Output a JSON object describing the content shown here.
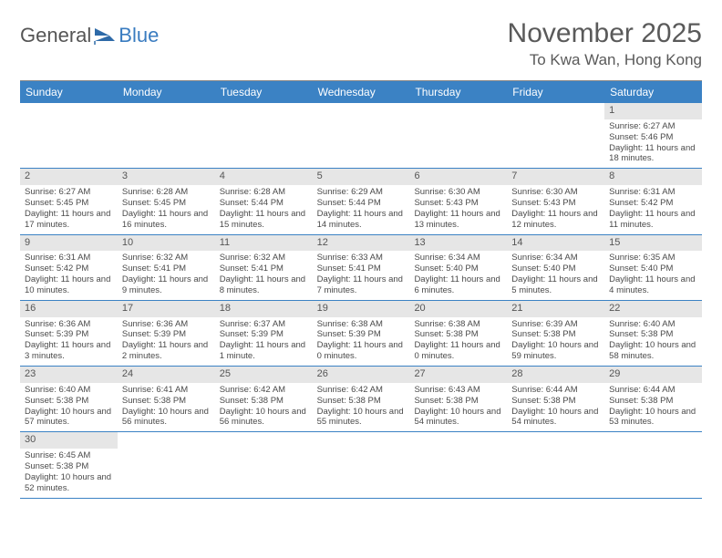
{
  "logo": {
    "textA": "General",
    "textB": "Blue"
  },
  "title": "November 2025",
  "location": "To Kwa Wan, Hong Kong",
  "colors": {
    "headerBar": "#3b82c4",
    "dayNumBg": "#e6e6e6",
    "weekDivider": "#3b82c4",
    "text": "#4a4a4a",
    "logoBlue": "#3a7cc0"
  },
  "weekdays": [
    "Sunday",
    "Monday",
    "Tuesday",
    "Wednesday",
    "Thursday",
    "Friday",
    "Saturday"
  ],
  "firstDayOffset": 6,
  "days": [
    {
      "n": 1,
      "sunrise": "6:27 AM",
      "sunset": "5:46 PM",
      "daylight": "11 hours and 18 minutes."
    },
    {
      "n": 2,
      "sunrise": "6:27 AM",
      "sunset": "5:45 PM",
      "daylight": "11 hours and 17 minutes."
    },
    {
      "n": 3,
      "sunrise": "6:28 AM",
      "sunset": "5:45 PM",
      "daylight": "11 hours and 16 minutes."
    },
    {
      "n": 4,
      "sunrise": "6:28 AM",
      "sunset": "5:44 PM",
      "daylight": "11 hours and 15 minutes."
    },
    {
      "n": 5,
      "sunrise": "6:29 AM",
      "sunset": "5:44 PM",
      "daylight": "11 hours and 14 minutes."
    },
    {
      "n": 6,
      "sunrise": "6:30 AM",
      "sunset": "5:43 PM",
      "daylight": "11 hours and 13 minutes."
    },
    {
      "n": 7,
      "sunrise": "6:30 AM",
      "sunset": "5:43 PM",
      "daylight": "11 hours and 12 minutes."
    },
    {
      "n": 8,
      "sunrise": "6:31 AM",
      "sunset": "5:42 PM",
      "daylight": "11 hours and 11 minutes."
    },
    {
      "n": 9,
      "sunrise": "6:31 AM",
      "sunset": "5:42 PM",
      "daylight": "11 hours and 10 minutes."
    },
    {
      "n": 10,
      "sunrise": "6:32 AM",
      "sunset": "5:41 PM",
      "daylight": "11 hours and 9 minutes."
    },
    {
      "n": 11,
      "sunrise": "6:32 AM",
      "sunset": "5:41 PM",
      "daylight": "11 hours and 8 minutes."
    },
    {
      "n": 12,
      "sunrise": "6:33 AM",
      "sunset": "5:41 PM",
      "daylight": "11 hours and 7 minutes."
    },
    {
      "n": 13,
      "sunrise": "6:34 AM",
      "sunset": "5:40 PM",
      "daylight": "11 hours and 6 minutes."
    },
    {
      "n": 14,
      "sunrise": "6:34 AM",
      "sunset": "5:40 PM",
      "daylight": "11 hours and 5 minutes."
    },
    {
      "n": 15,
      "sunrise": "6:35 AM",
      "sunset": "5:40 PM",
      "daylight": "11 hours and 4 minutes."
    },
    {
      "n": 16,
      "sunrise": "6:36 AM",
      "sunset": "5:39 PM",
      "daylight": "11 hours and 3 minutes."
    },
    {
      "n": 17,
      "sunrise": "6:36 AM",
      "sunset": "5:39 PM",
      "daylight": "11 hours and 2 minutes."
    },
    {
      "n": 18,
      "sunrise": "6:37 AM",
      "sunset": "5:39 PM",
      "daylight": "11 hours and 1 minute."
    },
    {
      "n": 19,
      "sunrise": "6:38 AM",
      "sunset": "5:39 PM",
      "daylight": "11 hours and 0 minutes."
    },
    {
      "n": 20,
      "sunrise": "6:38 AM",
      "sunset": "5:38 PM",
      "daylight": "11 hours and 0 minutes."
    },
    {
      "n": 21,
      "sunrise": "6:39 AM",
      "sunset": "5:38 PM",
      "daylight": "10 hours and 59 minutes."
    },
    {
      "n": 22,
      "sunrise": "6:40 AM",
      "sunset": "5:38 PM",
      "daylight": "10 hours and 58 minutes."
    },
    {
      "n": 23,
      "sunrise": "6:40 AM",
      "sunset": "5:38 PM",
      "daylight": "10 hours and 57 minutes."
    },
    {
      "n": 24,
      "sunrise": "6:41 AM",
      "sunset": "5:38 PM",
      "daylight": "10 hours and 56 minutes."
    },
    {
      "n": 25,
      "sunrise": "6:42 AM",
      "sunset": "5:38 PM",
      "daylight": "10 hours and 56 minutes."
    },
    {
      "n": 26,
      "sunrise": "6:42 AM",
      "sunset": "5:38 PM",
      "daylight": "10 hours and 55 minutes."
    },
    {
      "n": 27,
      "sunrise": "6:43 AM",
      "sunset": "5:38 PM",
      "daylight": "10 hours and 54 minutes."
    },
    {
      "n": 28,
      "sunrise": "6:44 AM",
      "sunset": "5:38 PM",
      "daylight": "10 hours and 54 minutes."
    },
    {
      "n": 29,
      "sunrise": "6:44 AM",
      "sunset": "5:38 PM",
      "daylight": "10 hours and 53 minutes."
    },
    {
      "n": 30,
      "sunrise": "6:45 AM",
      "sunset": "5:38 PM",
      "daylight": "10 hours and 52 minutes."
    }
  ],
  "labels": {
    "sunrise": "Sunrise:",
    "sunset": "Sunset:",
    "daylight": "Daylight:"
  }
}
